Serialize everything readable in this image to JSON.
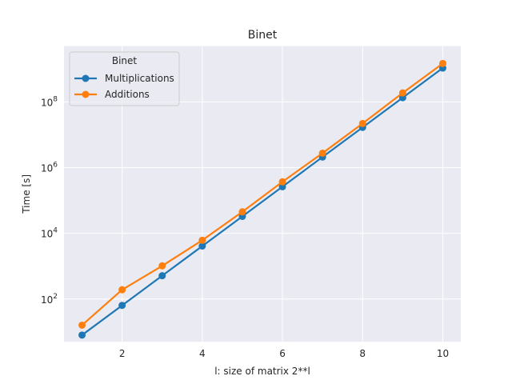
{
  "chart_data": {
    "type": "line",
    "title": "Binet",
    "xlabel": "l: size of matrix 2**l",
    "ylabel": "Time [s]",
    "yscale": "log",
    "xlim": [
      0.55,
      10.45
    ],
    "ylim": [
      5,
      5000000000
    ],
    "grid": true,
    "x": [
      1,
      2,
      3,
      4,
      5,
      6,
      7,
      8,
      9,
      10
    ],
    "x_ticks": [
      2,
      4,
      6,
      8,
      10
    ],
    "y_ticks": [
      {
        "value": 100,
        "base": "10",
        "exp": "2"
      },
      {
        "value": 10000,
        "base": "10",
        "exp": "4"
      },
      {
        "value": 1000000,
        "base": "10",
        "exp": "6"
      },
      {
        "value": 100000000,
        "base": "10",
        "exp": "8"
      }
    ],
    "legend": {
      "title": "Binet",
      "position": "upper-left"
    },
    "series": [
      {
        "name": "Multiplications",
        "color": "#1f77b4",
        "values": [
          8,
          64,
          512,
          4096,
          32768,
          262144,
          2097152,
          16777216,
          134217728,
          1073741824
        ]
      },
      {
        "name": "Additions",
        "color": "#ff7f0e",
        "values": [
          16,
          192,
          1024,
          6144,
          45056,
          368640,
          2752512,
          22020096,
          187695104,
          1476395008
        ]
      }
    ]
  }
}
